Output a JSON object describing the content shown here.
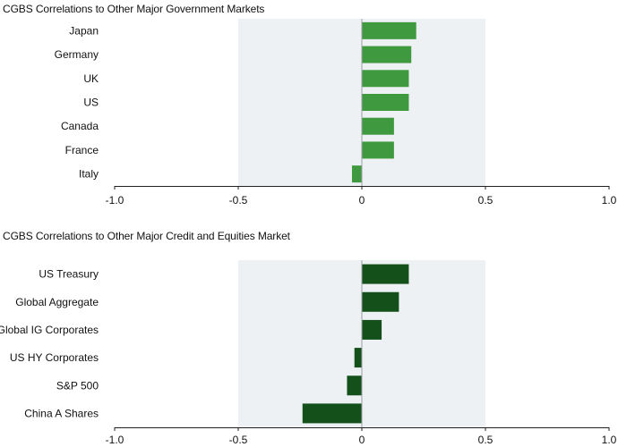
{
  "chart_data": [
    {
      "type": "bar",
      "orientation": "horizontal",
      "title": "CGBS Correlations to Other Major Government Markets",
      "categories": [
        "Japan",
        "Germany",
        "UK",
        "US",
        "Canada",
        "France",
        "Italy"
      ],
      "values": [
        0.22,
        0.2,
        0.19,
        0.19,
        0.13,
        0.13,
        -0.04
      ],
      "xlim": [
        -1.0,
        1.0
      ],
      "xticks": [
        "-1.0",
        "-0.5",
        "0",
        "0.5",
        "1.0"
      ],
      "shaded_range": [
        -0.5,
        0.5
      ],
      "bar_color": "#3f9a3f",
      "shade_color": "#eef1f4"
    },
    {
      "type": "bar",
      "orientation": "horizontal",
      "title": "CGBS Correlations to Other Major Credit and Equities Market",
      "categories": [
        "US Treasury",
        "Global Aggregate",
        "Global IG Corporates",
        "US HY Corporates",
        "S&P 500",
        "China A Shares"
      ],
      "values": [
        0.19,
        0.15,
        0.08,
        -0.03,
        -0.06,
        -0.24
      ],
      "xlim": [
        -1.0,
        1.0
      ],
      "xticks": [
        "-1.0",
        "-0.5",
        "0",
        "0.5",
        "1.0"
      ],
      "shaded_range": [
        -0.5,
        0.5
      ],
      "bar_color": "#14501a",
      "shade_color": "#eef1f4"
    }
  ]
}
